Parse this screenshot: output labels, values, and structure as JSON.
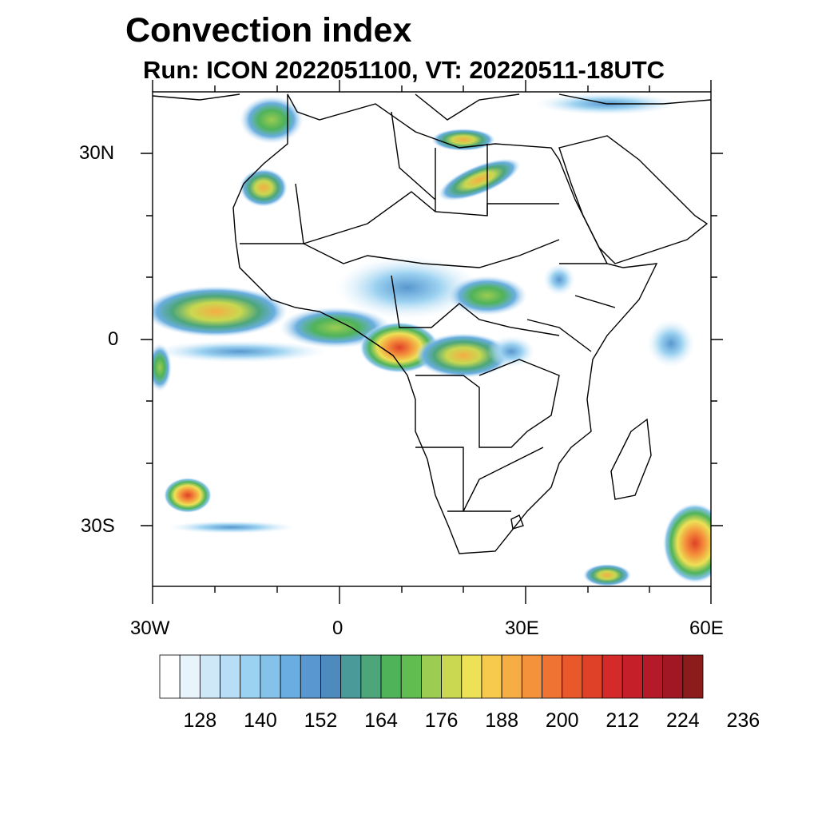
{
  "title": "Convection index",
  "subtitle": "Run: ICON 2022051100,  VT: 20220511-18UTC",
  "axes": {
    "lat_labels": [
      "30N",
      "0",
      "30S"
    ],
    "lon_labels": [
      "30W",
      "0",
      "30E",
      "60E"
    ]
  },
  "colorbar": {
    "labels": [
      "128",
      "140",
      "152",
      "164",
      "176",
      "188",
      "200",
      "212",
      "224",
      "236"
    ],
    "colors": [
      "#ffffff",
      "#e8f4fc",
      "#cfe8f8",
      "#b7def5",
      "#9cd2f1",
      "#84c2ea",
      "#6aaee1",
      "#5897cf",
      "#4d8bbf",
      "#4b9a9a",
      "#4ca67a",
      "#4fb35a",
      "#61bd4f",
      "#9ccc52",
      "#c9d850",
      "#ede155",
      "#f7ca4d",
      "#f6ad44",
      "#f4913b",
      "#ef7433",
      "#e8582b",
      "#df4028",
      "#d42b2a",
      "#c51f2a",
      "#b51a28",
      "#a11723",
      "#8c1c1c"
    ]
  }
}
